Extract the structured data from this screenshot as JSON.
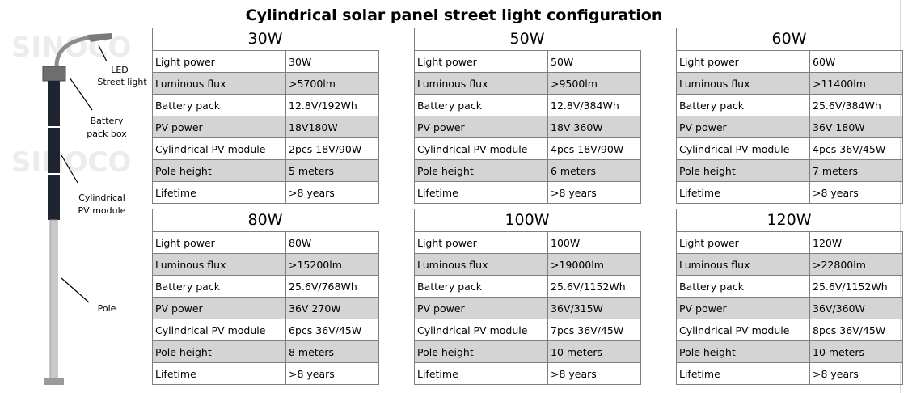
{
  "title": "Cylindrical solar panel street light configuration",
  "watermark": "SINOCO",
  "illustration": {
    "labels": {
      "led": "LED",
      "street": "Street light",
      "battery1": "Battery",
      "battery2": "pack box",
      "pv1": "Cylindrical",
      "pv2": "PV module",
      "pole": "Pole"
    }
  },
  "configs": [
    {
      "name": "30W",
      "rows": [
        {
          "k": "Light power",
          "v": "30W"
        },
        {
          "k": "Luminous flux",
          "v": ">5700lm"
        },
        {
          "k": "Battery pack",
          "v": "12.8V/192Wh"
        },
        {
          "k": "PV power",
          "v": "18V180W"
        },
        {
          "k": "Cylindrical PV module",
          "v": "2pcs  18V/90W"
        },
        {
          "k": "Pole height",
          "v": "5 meters"
        },
        {
          "k": "Lifetime",
          "v": ">8 years"
        }
      ]
    },
    {
      "name": "50W",
      "rows": [
        {
          "k": "Light power",
          "v": "50W"
        },
        {
          "k": "Luminous flux",
          "v": ">9500lm"
        },
        {
          "k": "Battery pack",
          "v": "12.8V/384Wh"
        },
        {
          "k": "PV power",
          "v": "18V 360W"
        },
        {
          "k": "Cylindrical PV module",
          "v": "4pcs  18V/90W"
        },
        {
          "k": "Pole height",
          "v": "6 meters"
        },
        {
          "k": "Lifetime",
          "v": ">8 years"
        }
      ]
    },
    {
      "name": "60W",
      "rows": [
        {
          "k": "Light power",
          "v": "60W"
        },
        {
          "k": "Luminous flux",
          "v": ">11400lm"
        },
        {
          "k": "Battery pack",
          "v": "25.6V/384Wh"
        },
        {
          "k": "PV power",
          "v": "36V 180W"
        },
        {
          "k": "Cylindrical PV module",
          "v": "4pcs 36V/45W"
        },
        {
          "k": "Pole height",
          "v": "7 meters"
        },
        {
          "k": "Lifetime",
          "v": ">8 years"
        }
      ]
    },
    {
      "name": "80W",
      "rows": [
        {
          "k": "Light power",
          "v": "80W"
        },
        {
          "k": "Luminous flux",
          "v": ">15200lm"
        },
        {
          "k": "Battery pack",
          "v": "25.6V/768Wh"
        },
        {
          "k": "PV power",
          "v": "36V 270W"
        },
        {
          "k": "Cylindrical PV module",
          "v": "6pcs 36V/45W"
        },
        {
          "k": "Pole height",
          "v": "8 meters"
        },
        {
          "k": "Lifetime",
          "v": ">8 years"
        }
      ]
    },
    {
      "name": "100W",
      "rows": [
        {
          "k": "Light power",
          "v": "100W"
        },
        {
          "k": "Luminous flux",
          "v": ">19000lm"
        },
        {
          "k": "Battery pack",
          "v": "25.6V/1152Wh"
        },
        {
          "k": "PV power",
          "v": "36V/315W"
        },
        {
          "k": "Cylindrical PV module",
          "v": "7pcs 36V/45W"
        },
        {
          "k": "Pole height",
          "v": "10 meters"
        },
        {
          "k": "Lifetime",
          "v": ">8 years"
        }
      ]
    },
    {
      "name": "120W",
      "rows": [
        {
          "k": "Light power",
          "v": "120W"
        },
        {
          "k": "Luminous flux",
          "v": ">22800lm"
        },
        {
          "k": "Battery pack",
          "v": "25.6V/1152Wh"
        },
        {
          "k": "PV power",
          "v": "36V/360W"
        },
        {
          "k": "Cylindrical PV module",
          "v": "8pcs 36V/45W"
        },
        {
          "k": "Pole height",
          "v": "10 meters"
        },
        {
          "k": "Lifetime",
          "v": ">8 years"
        }
      ]
    }
  ]
}
